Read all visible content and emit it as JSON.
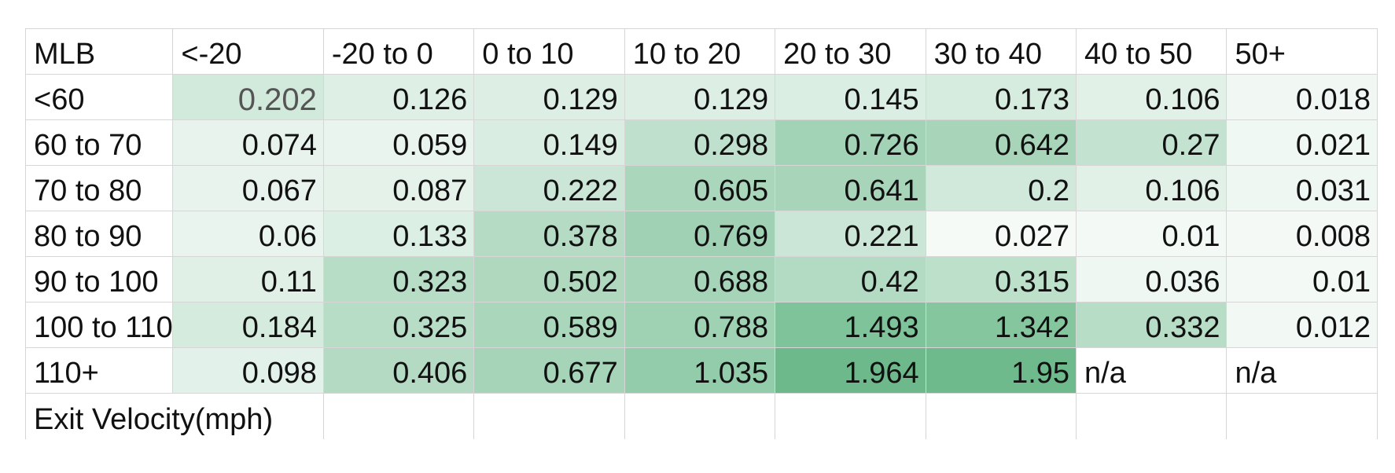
{
  "table": {
    "corner_label": "MLB",
    "column_headers": [
      "<-20",
      "-20 to 0",
      "0 to 10",
      "10 to 20",
      "20 to 30",
      "30 to 40",
      "40 to 50",
      "50+"
    ],
    "rows": [
      {
        "label": "<60",
        "cells": [
          {
            "text": "0.202",
            "color": "#d1eadc",
            "type": "num",
            "highlight": true
          },
          {
            "text": "0.126",
            "color": "#deefe5",
            "type": "num"
          },
          {
            "text": "0.129",
            "color": "#ddefe5",
            "type": "num"
          },
          {
            "text": "0.129",
            "color": "#ddefe5",
            "type": "num"
          },
          {
            "text": "0.145",
            "color": "#dbeee3",
            "type": "num"
          },
          {
            "text": "0.173",
            "color": "#d6ecdf",
            "type": "num"
          },
          {
            "text": "0.106",
            "color": "#e1f1e8",
            "type": "num"
          },
          {
            "text": "0.018",
            "color": "#f1f8f4",
            "type": "num"
          }
        ]
      },
      {
        "label": "60 to 70",
        "cells": [
          {
            "text": "0.074",
            "color": "#e7f3ec",
            "type": "num"
          },
          {
            "text": "0.059",
            "color": "#e9f4ee",
            "type": "num"
          },
          {
            "text": "0.149",
            "color": "#daede2",
            "type": "num"
          },
          {
            "text": "0.298",
            "color": "#bfe0cc",
            "type": "num"
          },
          {
            "text": "0.726",
            "color": "#a3d3b6",
            "type": "num"
          },
          {
            "text": "0.642",
            "color": "#a8d5ba",
            "type": "num"
          },
          {
            "text": "0.27",
            "color": "#c4e2d0",
            "type": "num"
          },
          {
            "text": "0.021",
            "color": "#f0f8f3",
            "type": "num"
          }
        ]
      },
      {
        "label": "70 to 80",
        "cells": [
          {
            "text": "0.067",
            "color": "#e8f3ed",
            "type": "num"
          },
          {
            "text": "0.087",
            "color": "#e4f2ea",
            "type": "num"
          },
          {
            "text": "0.222",
            "color": "#cbe6d6",
            "type": "num"
          },
          {
            "text": "0.605",
            "color": "#aad6bb",
            "type": "num"
          },
          {
            "text": "0.641",
            "color": "#a8d5ba",
            "type": "num"
          },
          {
            "text": "0.2",
            "color": "#d1e9db",
            "type": "num"
          },
          {
            "text": "0.106",
            "color": "#e1f1e8",
            "type": "num"
          },
          {
            "text": "0.031",
            "color": "#eef7f2",
            "type": "num"
          }
        ]
      },
      {
        "label": "80 to 90",
        "cells": [
          {
            "text": "0.06",
            "color": "#e9f4ee",
            "type": "num"
          },
          {
            "text": "0.133",
            "color": "#dcefe4",
            "type": "num"
          },
          {
            "text": "0.378",
            "color": "#b5dbc4",
            "type": "num"
          },
          {
            "text": "0.769",
            "color": "#a0d1b4",
            "type": "num"
          },
          {
            "text": "0.221",
            "color": "#cbe6d6",
            "type": "num"
          },
          {
            "text": "0.027",
            "color": "#f5faf7",
            "type": "num"
          },
          {
            "text": "0.01",
            "color": "#f3f9f5",
            "type": "num"
          },
          {
            "text": "0.008",
            "color": "#f4f9f6",
            "type": "num"
          }
        ]
      },
      {
        "label": "90 to 100",
        "cells": [
          {
            "text": "0.11",
            "color": "#e0f0e7",
            "type": "num"
          },
          {
            "text": "0.323",
            "color": "#b8ddc7",
            "type": "num"
          },
          {
            "text": "0.502",
            "color": "#afd8bf",
            "type": "num"
          },
          {
            "text": "0.688",
            "color": "#a5d4b8",
            "type": "num"
          },
          {
            "text": "0.42",
            "color": "#b3dac2",
            "type": "num"
          },
          {
            "text": "0.315",
            "color": "#bde0cb",
            "type": "num"
          },
          {
            "text": "0.036",
            "color": "#eef7f1",
            "type": "num"
          },
          {
            "text": "0.01",
            "color": "#f3f9f5",
            "type": "num"
          }
        ]
      },
      {
        "label": "100 to 110",
        "cells": [
          {
            "text": "0.184",
            "color": "#d4ebdd",
            "type": "num"
          },
          {
            "text": "0.325",
            "color": "#b8ddc7",
            "type": "num"
          },
          {
            "text": "0.589",
            "color": "#aad6bc",
            "type": "num"
          },
          {
            "text": "0.788",
            "color": "#9fd1b3",
            "type": "num"
          },
          {
            "text": "1.493",
            "color": "#7fc39a",
            "type": "num"
          },
          {
            "text": "1.342",
            "color": "#85c69e",
            "type": "num"
          },
          {
            "text": "0.332",
            "color": "#b8ddc7",
            "type": "num"
          },
          {
            "text": "0.012",
            "color": "#f2f9f5",
            "type": "num"
          }
        ]
      },
      {
        "label": "110+",
        "cells": [
          {
            "text": "0.098",
            "color": "#e2f1e9",
            "type": "num"
          },
          {
            "text": "0.406",
            "color": "#b4dac3",
            "type": "num"
          },
          {
            "text": "0.677",
            "color": "#a6d4b8",
            "type": "num"
          },
          {
            "text": "1.035",
            "color": "#93ccaa",
            "type": "num"
          },
          {
            "text": "1.964",
            "color": "#6db98b",
            "type": "num"
          },
          {
            "text": "1.95",
            "color": "#6eba8c",
            "type": "num"
          },
          {
            "text": "n/a",
            "color": "#ffffff",
            "type": "txt"
          },
          {
            "text": "n/a",
            "color": "#ffffff",
            "type": "txt"
          }
        ]
      }
    ],
    "footer_label": "Exit Velocity(mph)"
  }
}
